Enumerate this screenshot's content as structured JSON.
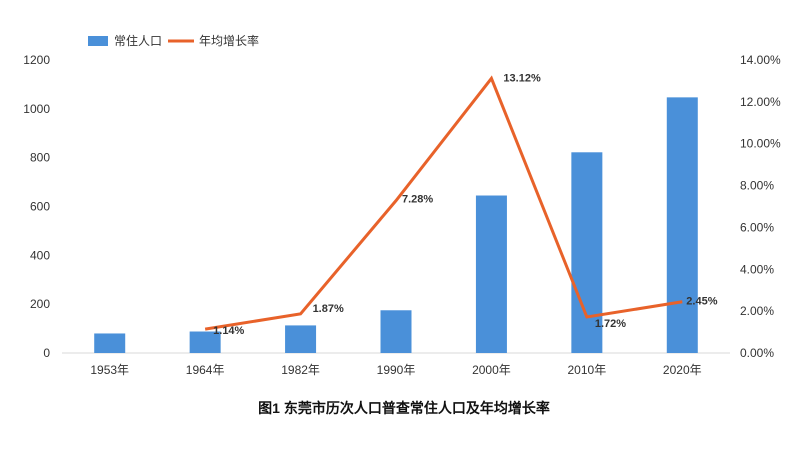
{
  "chart_data": {
    "type": "bar",
    "title": "图1 东莞市历次人口普查常住人口及年均增长率",
    "categories": [
      "1953年",
      "1964年",
      "1982年",
      "1990年",
      "2000年",
      "2010年",
      "2020年"
    ],
    "series": [
      {
        "name": "常住人口",
        "type": "bar",
        "axis": "left",
        "color": "#4A90D9",
        "values": [
          80,
          88,
          113,
          175,
          645,
          822,
          1047
        ]
      },
      {
        "name": "年均增长率",
        "type": "line",
        "axis": "right",
        "color": "#E8622A",
        "values": [
          null,
          1.14,
          1.87,
          7.28,
          13.12,
          1.72,
          2.45
        ],
        "data_labels": [
          "",
          "1.14%",
          "1.87%",
          "7.28%",
          "13.12%",
          "1.72%",
          "2.45%"
        ]
      }
    ],
    "y_left": {
      "ylim": [
        0,
        1200
      ],
      "ticks": [
        "0",
        "200",
        "400",
        "600",
        "800",
        "1000",
        "1200"
      ]
    },
    "y_right": {
      "ylim": [
        0,
        14
      ],
      "ticks": [
        "0.00%",
        "2.00%",
        "4.00%",
        "6.00%",
        "8.00%",
        "10.00%",
        "12.00%",
        "14.00%"
      ]
    },
    "grid": false,
    "legend_position": "top-left"
  }
}
